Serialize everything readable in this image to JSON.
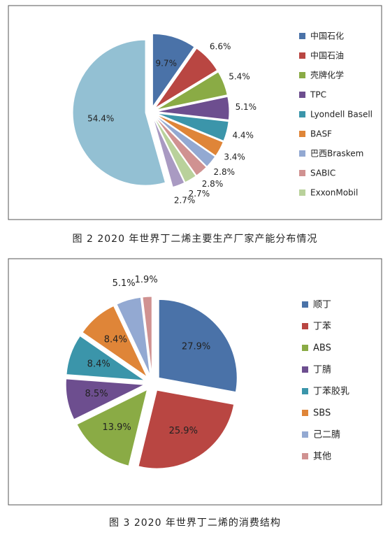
{
  "chart_data": [
    {
      "type": "pie",
      "caption": "图 2  2020 年世界丁二烯主要生产厂家产能分布情况",
      "categories": [
        "中国石化",
        "中国石油",
        "壳牌化学",
        "TPC",
        "Lyondell Basell",
        "BASF",
        "巴西Braskem",
        "SABIC",
        "ExxonMobil",
        null,
        null
      ],
      "values": [
        9.7,
        6.6,
        5.4,
        5.1,
        4.4,
        3.4,
        2.8,
        2.8,
        2.7,
        2.7,
        54.4
      ],
      "value_labels": [
        "9.7%",
        "6.6%",
        "5.4%",
        "5.1%",
        "4.4%",
        "3.4%",
        "2.8%",
        "2.8%",
        "2.7%",
        "2.7%",
        "54.4%"
      ],
      "colors": [
        "#4a72a8",
        "#b94642",
        "#8aab45",
        "#6d4e8f",
        "#3b95aa",
        "#df8538",
        "#93a9d2",
        "#d09291",
        "#b9d19b",
        "#a99ac2",
        "#93c0d3"
      ]
    },
    {
      "type": "pie",
      "caption": "图 3  2020 年世界丁二烯的消费结构",
      "categories": [
        "顺丁",
        "丁苯",
        "ABS",
        "丁腈",
        "丁苯胶乳",
        "SBS",
        "己二腈",
        "其他"
      ],
      "values": [
        27.9,
        25.9,
        13.9,
        8.5,
        8.4,
        8.4,
        5.1,
        1.9
      ],
      "value_labels": [
        "27.9%",
        "25.9%",
        "13.9%",
        "8.5%",
        "8.4%",
        "8.4%",
        "5.1%",
        "1.9%"
      ],
      "colors": [
        "#4a72a8",
        "#b94642",
        "#8aab45",
        "#6d4e8f",
        "#3b95aa",
        "#df8538",
        "#93a9d2",
        "#d09291"
      ]
    }
  ]
}
